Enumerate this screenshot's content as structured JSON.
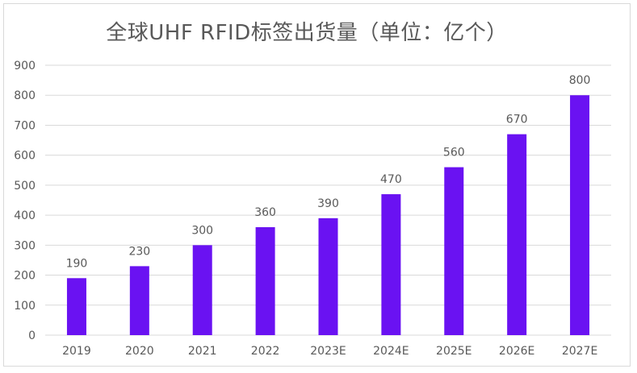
{
  "chart_data": {
    "type": "bar",
    "title": "全球UHF RFID标签出货量（单位：亿个）",
    "categories": [
      "2019",
      "2020",
      "2021",
      "2022",
      "2023E",
      "2024E",
      "2025E",
      "2026E",
      "2027E"
    ],
    "values": [
      190,
      230,
      300,
      360,
      390,
      470,
      560,
      670,
      800
    ],
    "value_labels": [
      "190",
      "230",
      "300",
      "360",
      "390",
      "470",
      "560",
      "670",
      "800"
    ],
    "ylim": [
      0,
      900
    ],
    "yticks": [
      "0",
      "100",
      "200",
      "300",
      "400",
      "500",
      "600",
      "700",
      "800",
      "900"
    ],
    "grid": true,
    "legend": "none",
    "bar_color": "#6a12f2",
    "grid_color": "#d9d9d9",
    "text_color": "#595959"
  }
}
